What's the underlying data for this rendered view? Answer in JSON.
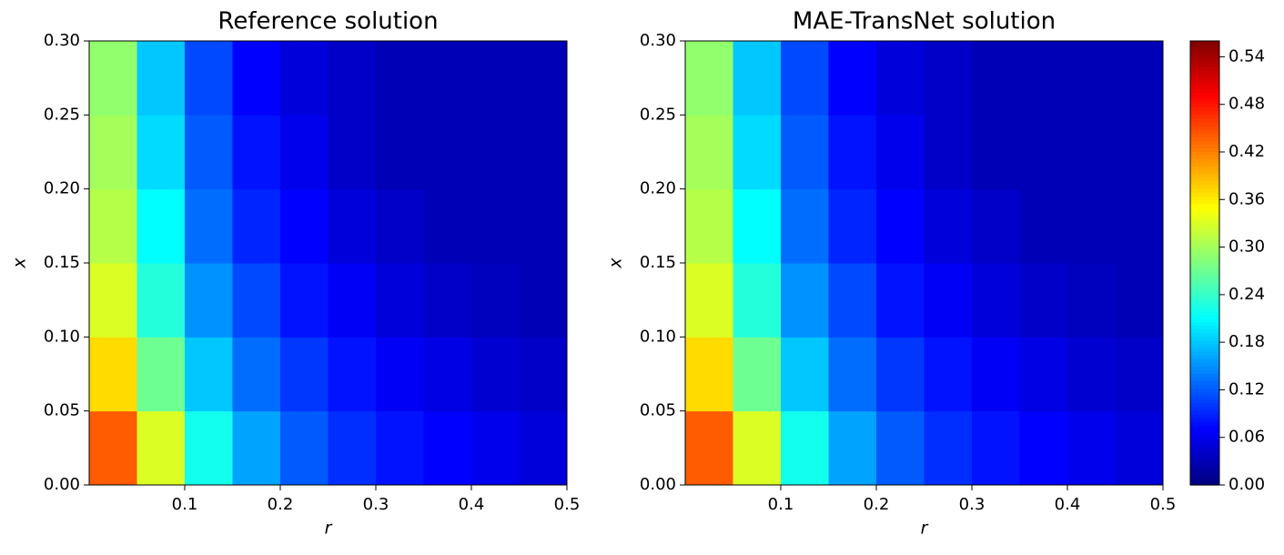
{
  "chart_data": [
    {
      "type": "heatmap",
      "title": "Reference solution",
      "xlabel": "r",
      "ylabel": "x",
      "colormap": "jet",
      "x": [
        0.025,
        0.075,
        0.125,
        0.175,
        0.225,
        0.275,
        0.325,
        0.375,
        0.425,
        0.475
      ],
      "y": [
        0.025,
        0.075,
        0.125,
        0.175,
        0.225,
        0.275
      ],
      "z": [
        [
          0.44,
          0.33,
          0.22,
          0.16,
          0.12,
          0.095,
          0.08,
          0.07,
          0.06,
          0.05
        ],
        [
          0.37,
          0.27,
          0.18,
          0.13,
          0.1,
          0.08,
          0.065,
          0.055,
          0.045,
          0.04
        ],
        [
          0.33,
          0.23,
          0.15,
          0.11,
          0.08,
          0.065,
          0.05,
          0.04,
          0.035,
          0.03
        ],
        [
          0.31,
          0.21,
          0.13,
          0.09,
          0.07,
          0.05,
          0.04,
          0.03,
          0.03,
          0.03
        ],
        [
          0.3,
          0.19,
          0.12,
          0.08,
          0.06,
          0.04,
          0.03,
          0.03,
          0.03,
          0.03
        ],
        [
          0.29,
          0.18,
          0.11,
          0.07,
          0.05,
          0.04,
          0.03,
          0.03,
          0.03,
          0.03
        ]
      ],
      "xlim": [
        0,
        0.5
      ],
      "xticks": [
        0.1,
        0.2,
        0.3,
        0.4,
        0.5
      ],
      "ylim": [
        0,
        0.3
      ],
      "yticks": [
        {
          "value": 0,
          "label": "0.00"
        },
        0.05,
        {
          "value": 0.1,
          "label": "0.10"
        },
        0.15,
        {
          "value": 0.2,
          "label": "0.20"
        },
        0.25,
        {
          "value": 0.3,
          "label": "0.30"
        }
      ]
    },
    {
      "type": "heatmap",
      "title": "MAE-TransNet solution",
      "xlabel": "r",
      "ylabel": "x",
      "colormap": "jet",
      "x": [
        0.025,
        0.075,
        0.125,
        0.175,
        0.225,
        0.275,
        0.325,
        0.375,
        0.425,
        0.475
      ],
      "y": [
        0.025,
        0.075,
        0.125,
        0.175,
        0.225,
        0.275
      ],
      "z": [
        [
          0.44,
          0.33,
          0.22,
          0.16,
          0.12,
          0.095,
          0.08,
          0.07,
          0.06,
          0.05
        ],
        [
          0.37,
          0.27,
          0.18,
          0.13,
          0.1,
          0.08,
          0.065,
          0.055,
          0.045,
          0.04
        ],
        [
          0.33,
          0.23,
          0.15,
          0.11,
          0.08,
          0.065,
          0.05,
          0.04,
          0.035,
          0.03
        ],
        [
          0.31,
          0.21,
          0.13,
          0.09,
          0.07,
          0.05,
          0.04,
          0.03,
          0.03,
          0.03
        ],
        [
          0.3,
          0.19,
          0.12,
          0.08,
          0.06,
          0.04,
          0.03,
          0.03,
          0.03,
          0.03
        ],
        [
          0.29,
          0.18,
          0.11,
          0.07,
          0.05,
          0.04,
          0.03,
          0.03,
          0.03,
          0.03
        ]
      ],
      "xlim": [
        0,
        0.5
      ],
      "xticks": [
        0.1,
        0.2,
        0.3,
        0.4,
        0.5
      ],
      "ylim": [
        0,
        0.3
      ],
      "yticks": [
        {
          "value": 0,
          "label": "0.00"
        },
        0.05,
        {
          "value": 0.1,
          "label": "0.10"
        },
        0.15,
        {
          "value": 0.2,
          "label": "0.20"
        },
        0.25,
        {
          "value": 0.3,
          "label": "0.30"
        }
      ],
      "colorbar": {
        "lim": [
          0,
          0.56
        ],
        "ticks": [
          {
            "value": 0,
            "label": "0.00"
          },
          0.06,
          0.12,
          0.18,
          0.24,
          {
            "value": 0.3,
            "label": "0.30"
          },
          0.36,
          0.42,
          0.48,
          0.54
        ]
      }
    }
  ]
}
